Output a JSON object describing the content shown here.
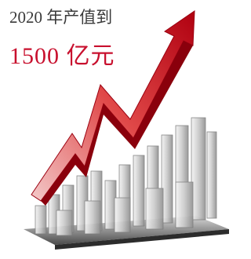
{
  "headline": {
    "line1": "2020 年产值到",
    "line2": "1500 亿元"
  }
}
